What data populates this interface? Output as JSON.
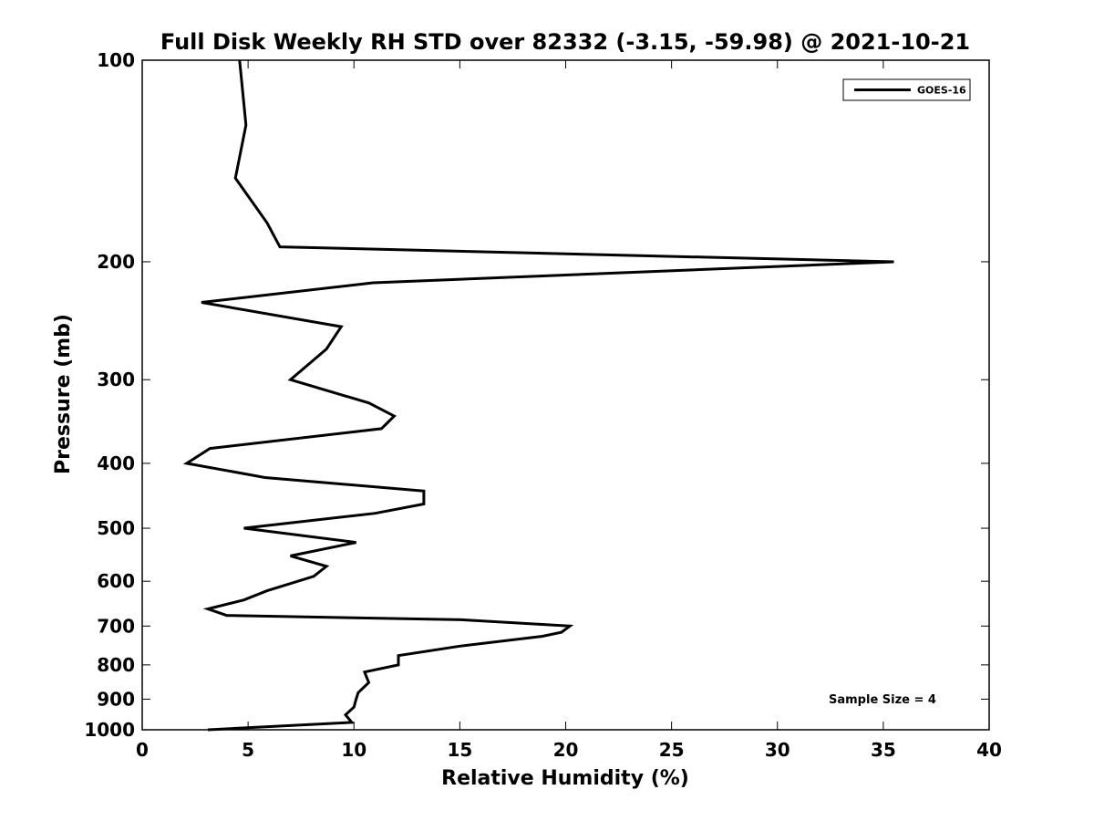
{
  "chart_data": {
    "type": "line",
    "title": "Full Disk Weekly RH STD over 82332 (-3.15, -59.98) @ 2021-10-21",
    "xlabel": "Relative Humidity (%)",
    "ylabel": "Pressure (mb)",
    "xlim": [
      0,
      40
    ],
    "ylim": [
      100,
      1000
    ],
    "yscale": "log",
    "reverse_y": true,
    "x_ticks": [
      0,
      5,
      10,
      15,
      20,
      25,
      30,
      35,
      40
    ],
    "x_tick_labels": [
      "0",
      "5",
      "10",
      "15",
      "20",
      "25",
      "30",
      "35",
      "40"
    ],
    "y_ticks": [
      100,
      200,
      300,
      400,
      500,
      600,
      700,
      800,
      900,
      1000
    ],
    "y_tick_labels": [
      "100",
      "200",
      "300",
      "400",
      "500",
      "600",
      "700",
      "800",
      "900",
      "1000"
    ],
    "legend_position": "top-right",
    "grid": false,
    "series": [
      {
        "name": "GOES-16",
        "color": "#000000",
        "points": [
          [
            4.6,
            100
          ],
          [
            4.9,
            125
          ],
          [
            4.4,
            150
          ],
          [
            5.9,
            175
          ],
          [
            6.5,
            190
          ],
          [
            35.5,
            200
          ],
          [
            10.9,
            215
          ],
          [
            2.8,
            230
          ],
          [
            9.4,
            250
          ],
          [
            8.7,
            270
          ],
          [
            7.0,
            300
          ],
          [
            10.7,
            325
          ],
          [
            11.9,
            340
          ],
          [
            11.3,
            355
          ],
          [
            3.2,
            380
          ],
          [
            2.1,
            400
          ],
          [
            5.8,
            420
          ],
          [
            13.3,
            440
          ],
          [
            13.3,
            460
          ],
          [
            11.0,
            475
          ],
          [
            4.8,
            500
          ],
          [
            10.1,
            525
          ],
          [
            7.0,
            550
          ],
          [
            8.7,
            570
          ],
          [
            8.1,
            590
          ],
          [
            5.9,
            620
          ],
          [
            4.8,
            640
          ],
          [
            3.1,
            660
          ],
          [
            4.0,
            675
          ],
          [
            15.1,
            685
          ],
          [
            20.2,
            700
          ],
          [
            19.8,
            715
          ],
          [
            18.9,
            725
          ],
          [
            15.0,
            750
          ],
          [
            12.1,
            775
          ],
          [
            12.1,
            800
          ],
          [
            10.5,
            820
          ],
          [
            10.7,
            850
          ],
          [
            10.2,
            880
          ],
          [
            10.1,
            900
          ],
          [
            10.0,
            925
          ],
          [
            9.6,
            950
          ],
          [
            9.9,
            975
          ],
          [
            3.1,
            1000
          ]
        ]
      }
    ],
    "annotations": [
      "Sample Size = 4"
    ]
  }
}
